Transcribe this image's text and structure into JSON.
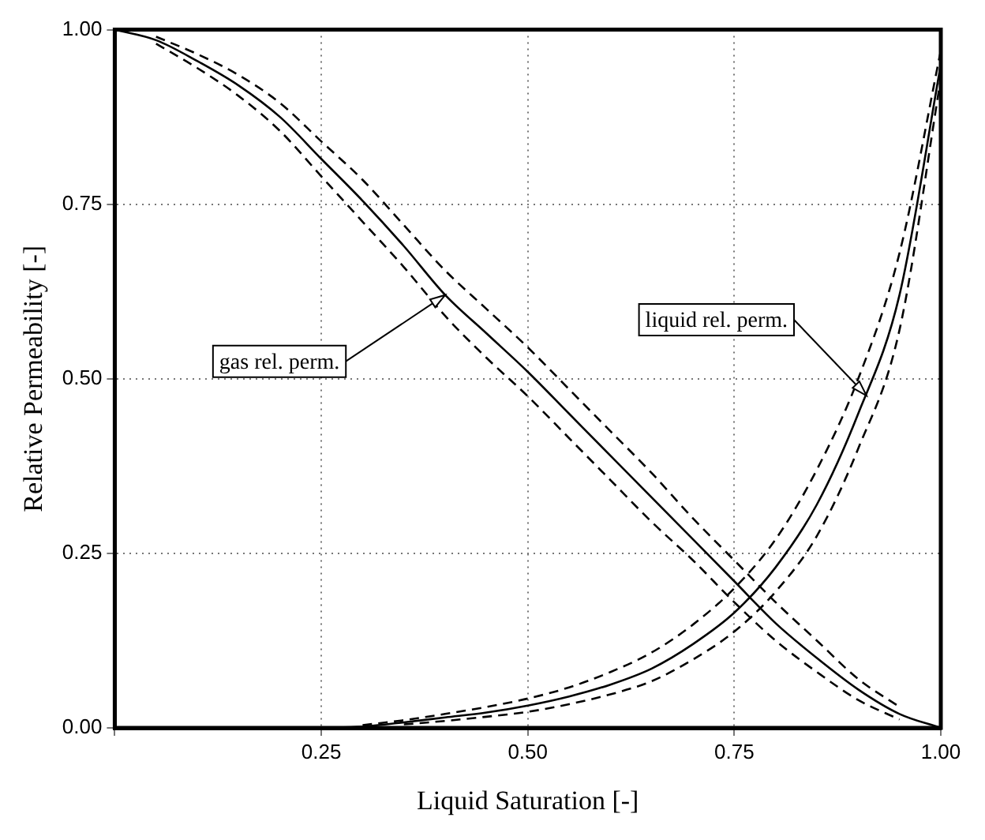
{
  "chart_data": {
    "type": "line",
    "xlabel": "Liquid Saturation [-]",
    "ylabel": "Relative Permeability [-]",
    "x": [
      0,
      0.05,
      0.1,
      0.15,
      0.2,
      0.25,
      0.3,
      0.35,
      0.4,
      0.45,
      0.5,
      0.55,
      0.6,
      0.65,
      0.7,
      0.75,
      0.8,
      0.85,
      0.9,
      0.95,
      1
    ],
    "series": [
      {
        "color": "#000000",
        "line_style": "solid",
        "values": [
          1,
          0.985,
          0.955,
          0.92,
          0.875,
          0.815,
          0.755,
          0.69,
          0.62,
          0.565,
          0.51,
          0.45,
          0.39,
          0.33,
          0.27,
          0.21,
          0.15,
          0.1,
          0.055,
          0.02,
          0
        ]
      },
      {
        "color": "#000000",
        "line_style": "dashed",
        "values": [
          null,
          0.99,
          0.965,
          0.935,
          0.895,
          0.84,
          0.785,
          0.72,
          0.655,
          0.6,
          0.545,
          0.485,
          0.425,
          0.365,
          0.3,
          0.24,
          0.18,
          0.125,
          0.07,
          0.03,
          null
        ]
      },
      {
        "color": "#000000",
        "line_style": "dashed",
        "values": [
          null,
          0.98,
          0.945,
          0.905,
          0.855,
          0.79,
          0.725,
          0.66,
          0.59,
          0.53,
          0.475,
          0.415,
          0.355,
          0.295,
          0.24,
          0.18,
          0.125,
          0.08,
          0.04,
          0.012,
          null
        ]
      },
      {
        "color": "#000000",
        "line_style": "solid",
        "values": [
          null,
          null,
          null,
          null,
          null,
          0,
          0.002,
          0.008,
          0.015,
          0.022,
          0.032,
          0.045,
          0.062,
          0.085,
          0.12,
          0.165,
          0.23,
          0.32,
          0.45,
          0.62,
          0.95
        ]
      },
      {
        "color": "#000000",
        "line_style": "dashed",
        "values": [
          null,
          null,
          null,
          null,
          null,
          null,
          0.004,
          0.011,
          0.02,
          0.03,
          0.042,
          0.058,
          0.08,
          0.108,
          0.148,
          0.2,
          0.27,
          0.37,
          0.5,
          0.68,
          0.97
        ]
      },
      {
        "color": "#000000",
        "line_style": "dashed",
        "values": [
          null,
          null,
          null,
          null,
          null,
          null,
          null,
          0.005,
          0.01,
          0.016,
          0.023,
          0.034,
          0.048,
          0.067,
          0.098,
          0.138,
          0.195,
          0.275,
          0.4,
          0.57,
          0.93
        ]
      }
    ],
    "xlim": [
      0,
      1
    ],
    "ylim": [
      0,
      1
    ],
    "xticks": [
      {
        "value": 0,
        "label": null
      },
      {
        "value": 0.25,
        "label": "0.25"
      },
      {
        "value": 0.5,
        "label": "0.50"
      },
      {
        "value": 0.75,
        "label": "0.75"
      },
      {
        "value": 1,
        "label": "1.00"
      }
    ],
    "yticks": [
      {
        "value": 0,
        "label": "0.00"
      },
      {
        "value": 0.25,
        "label": "0.25"
      },
      {
        "value": 0.5,
        "label": "0.50"
      },
      {
        "value": 0.75,
        "label": "0.75"
      },
      {
        "value": 1,
        "label": "1.00"
      }
    ],
    "grid": true,
    "legend": false,
    "marker": "none",
    "annotations": [
      {
        "text": "gas rel. perm.",
        "x": 0.4,
        "y": 0.62
      },
      {
        "text": "liquid rel. perm.",
        "x": 0.91,
        "y": 0.476
      }
    ]
  }
}
